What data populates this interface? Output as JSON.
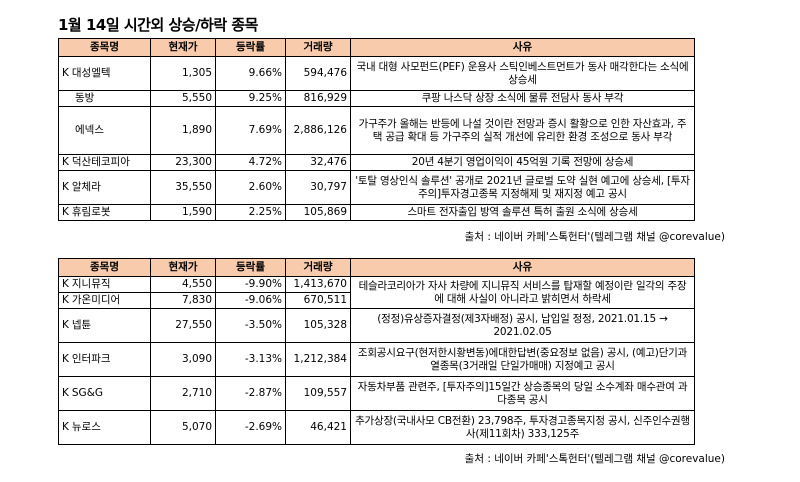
{
  "title": "1월 14일  시간외 상승/하락 종목",
  "headers": {
    "name": "종목명",
    "price": "현재가",
    "change": "등락률",
    "volume": "거래량",
    "reason": "사유"
  },
  "up_rows": [
    {
      "prefix": "K",
      "name": "대성엘텍",
      "price": "1,305",
      "change": "9.66%",
      "volume": "594,476",
      "reason": "국내 대형 사모펀드(PEF) 운용사 스틱인베스트먼트가 동사 매각한다는 소식에 상승세"
    },
    {
      "prefix": "",
      "name": "동방",
      "price": "5,550",
      "change": "9.25%",
      "volume": "816,929",
      "reason": "쿠팡 나스닥 상장 소식에 물류 전담사 동사 부각"
    },
    {
      "prefix": "",
      "name": "에넥스",
      "price": "1,890",
      "change": "7.69%",
      "volume": "2,886,126",
      "reason": "가구주가 올해는 반등에 나설 것이란 전망과 증시 활황으로 인한 자산효과, 주택 공급 확대 등 가구주의 실적 개선에 유리한 환경 조성으로 동사 부각"
    },
    {
      "prefix": "K",
      "name": "덕산테코피아",
      "price": "23,300",
      "change": "4.72%",
      "volume": "32,476",
      "reason": "20년 4분기 영업이익이 45억원 기록 전망에 상승세"
    },
    {
      "prefix": "K",
      "name": "알체라",
      "price": "35,550",
      "change": "2.60%",
      "volume": "30,797",
      "reason": "'토탈 영상인식 솔루션' 공개로 2021년 글로벌 도약 실현 예고에 상승세, [투자주의]투자경고종목 지정해제 및 재지정 예고 공시"
    },
    {
      "prefix": "K",
      "name": "휴림로봇",
      "price": "1,590",
      "change": "2.25%",
      "volume": "105,869",
      "reason": "스마트 전자출입 방역 솔루션 특허 출원 소식에 상승세"
    }
  ],
  "down_rows": [
    {
      "prefix": "K",
      "name": "지니뮤직",
      "price": "4,550",
      "change": "-9.90%",
      "volume": "1,413,670",
      "reason": "테슬라코리아가 자사 차량에 지니뮤직 서비스를 탑재할 예정이란 일각의 주장에 대해 사실이 아니라고 밝히면서 하락세"
    },
    {
      "prefix": "K",
      "name": "가온미디어",
      "price": "7,830",
      "change": "-9.06%",
      "volume": "670,511",
      "reason": ""
    },
    {
      "prefix": "K",
      "name": "넵튠",
      "price": "27,550",
      "change": "-3.50%",
      "volume": "105,328",
      "reason": "(정정)유상증자결정(제3자배정) 공시, 납입일 정정, 2021.01.15 → 2021.02.05"
    },
    {
      "prefix": "K",
      "name": "인터파크",
      "price": "3,090",
      "change": "-3.13%",
      "volume": "1,212,384",
      "reason": "조회공시요구(현저한시황변동)에대한답변(중요정보 없음) 공시, (예고)단기과열종목(3거래일 단일가매매) 지정예고 공시"
    },
    {
      "prefix": "K",
      "name": "SG&G",
      "price": "2,710",
      "change": "-2.87%",
      "volume": "109,557",
      "reason": "자동차부품 관련주, [투자주의]15일간 상승종목의 당일 소수계좌 매수관여 과다종목 공시"
    },
    {
      "prefix": "K",
      "name": "뉴로스",
      "price": "5,070",
      "change": "-2.69%",
      "volume": "46,421",
      "reason": "추가상장(국내사모 CB전환) 23,798주, 투자경고종목지정 공시, 신주인수권행사(제11회차) 333,125주"
    }
  ],
  "source": "출처 : 네이버 카페'스톡헌터'(텔레그램 채널 @corevalue)"
}
